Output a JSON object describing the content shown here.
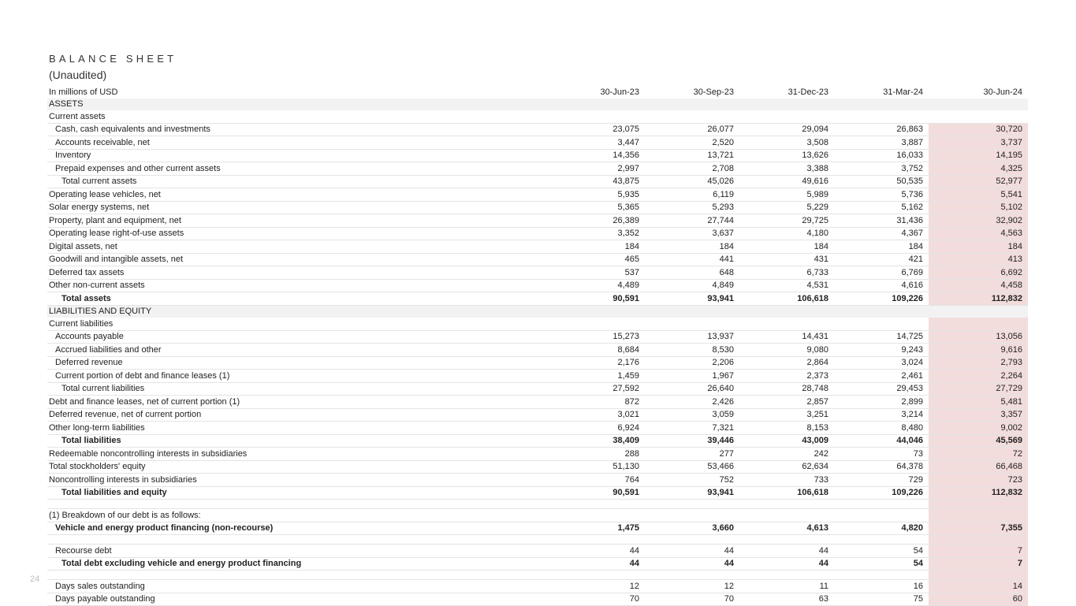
{
  "header": {
    "title": "BALANCE SHEET",
    "subtitle": "(Unaudited)"
  },
  "table": {
    "columns": [
      "In millions of USD",
      "30-Jun-23",
      "30-Sep-23",
      "31-Dec-23",
      "31-Mar-24",
      "30-Jun-24"
    ],
    "rows": [
      [
        "ASSETS"
      ],
      [
        "Current assets"
      ],
      [
        "Cash, cash equivalents and investments",
        "23,075",
        "26,077",
        "29,094",
        "26,863",
        "30,720"
      ],
      [
        "Accounts receivable, net",
        "3,447",
        "2,520",
        "3,508",
        "3,887",
        "3,737"
      ],
      [
        "Inventory",
        "14,356",
        "13,721",
        "13,626",
        "16,033",
        "14,195"
      ],
      [
        "Prepaid expenses and other current assets",
        "2,997",
        "2,708",
        "3,388",
        "3,752",
        "4,325"
      ],
      [
        "Total current assets",
        "43,875",
        "45,026",
        "49,616",
        "50,535",
        "52,977"
      ],
      [
        "Operating lease vehicles, net",
        "5,935",
        "6,119",
        "5,989",
        "5,736",
        "5,541"
      ],
      [
        "Solar energy systems, net",
        "5,365",
        "5,293",
        "5,229",
        "5,162",
        "5,102"
      ],
      [
        "Property, plant and equipment, net",
        "26,389",
        "27,744",
        "29,725",
        "31,436",
        "32,902"
      ],
      [
        "Operating lease right-of-use assets",
        "3,352",
        "3,637",
        "4,180",
        "4,367",
        "4,563"
      ],
      [
        "Digital assets, net",
        "184",
        "184",
        "184",
        "184",
        "184"
      ],
      [
        "Goodwill and intangible assets, net",
        "465",
        "441",
        "431",
        "421",
        "413"
      ],
      [
        "Deferred tax assets",
        "537",
        "648",
        "6,733",
        "6,769",
        "6,692"
      ],
      [
        "Other non-current assets",
        "4,489",
        "4,849",
        "4,531",
        "4,616",
        "4,458"
      ],
      [
        "Total assets",
        "90,591",
        "93,941",
        "106,618",
        "109,226",
        "112,832"
      ],
      [
        "LIABILITIES AND EQUITY"
      ],
      [
        "Current liabilities"
      ],
      [
        "Accounts payable",
        "15,273",
        "13,937",
        "14,431",
        "14,725",
        "13,056"
      ],
      [
        "Accrued liabilities and other",
        "8,684",
        "8,530",
        "9,080",
        "9,243",
        "9,616"
      ],
      [
        "Deferred revenue",
        "2,176",
        "2,206",
        "2,864",
        "3,024",
        "2,793"
      ],
      [
        "Current portion of debt and finance leases (1)",
        "1,459",
        "1,967",
        "2,373",
        "2,461",
        "2,264"
      ],
      [
        "Total current liabilities",
        "27,592",
        "26,640",
        "28,748",
        "29,453",
        "27,729"
      ],
      [
        "Debt and finance leases, net of current portion (1)",
        "872",
        "2,426",
        "2,857",
        "2,899",
        "5,481"
      ],
      [
        "Deferred revenue, net of current portion",
        "3,021",
        "3,059",
        "3,251",
        "3,214",
        "3,357"
      ],
      [
        "Other long-term liabilities",
        "6,924",
        "7,321",
        "8,153",
        "8,480",
        "9,002"
      ],
      [
        "Total liabilities",
        "38,409",
        "39,446",
        "43,009",
        "44,046",
        "45,569"
      ],
      [
        "Redeemable noncontrolling interests in subsidiaries",
        "288",
        "277",
        "242",
        "73",
        "72"
      ],
      [
        "Total stockholders' equity",
        "51,130",
        "53,466",
        "62,634",
        "64,378",
        "66,468"
      ],
      [
        "Noncontrolling interests in subsidiaries",
        "764",
        "752",
        "733",
        "729",
        "723"
      ],
      [
        "Total liabilities and equity",
        "90,591",
        "93,941",
        "106,618",
        "109,226",
        "112,832"
      ],
      [
        "(1) Breakdown of our debt is as follows:"
      ],
      [
        "Vehicle and energy product financing (non-recourse)",
        "1,475",
        "3,660",
        "4,613",
        "4,820",
        "7,355"
      ],
      [
        "Recourse debt",
        "44",
        "44",
        "44",
        "54",
        "7"
      ],
      [
        "Total debt excluding vehicle and energy product financing",
        "44",
        "44",
        "44",
        "54",
        "7"
      ],
      [
        "Days sales outstanding",
        "12",
        "12",
        "11",
        "16",
        "14"
      ],
      [
        "Days payable outstanding",
        "70",
        "70",
        "63",
        "75",
        "60"
      ]
    ]
  },
  "page_number": "24"
}
